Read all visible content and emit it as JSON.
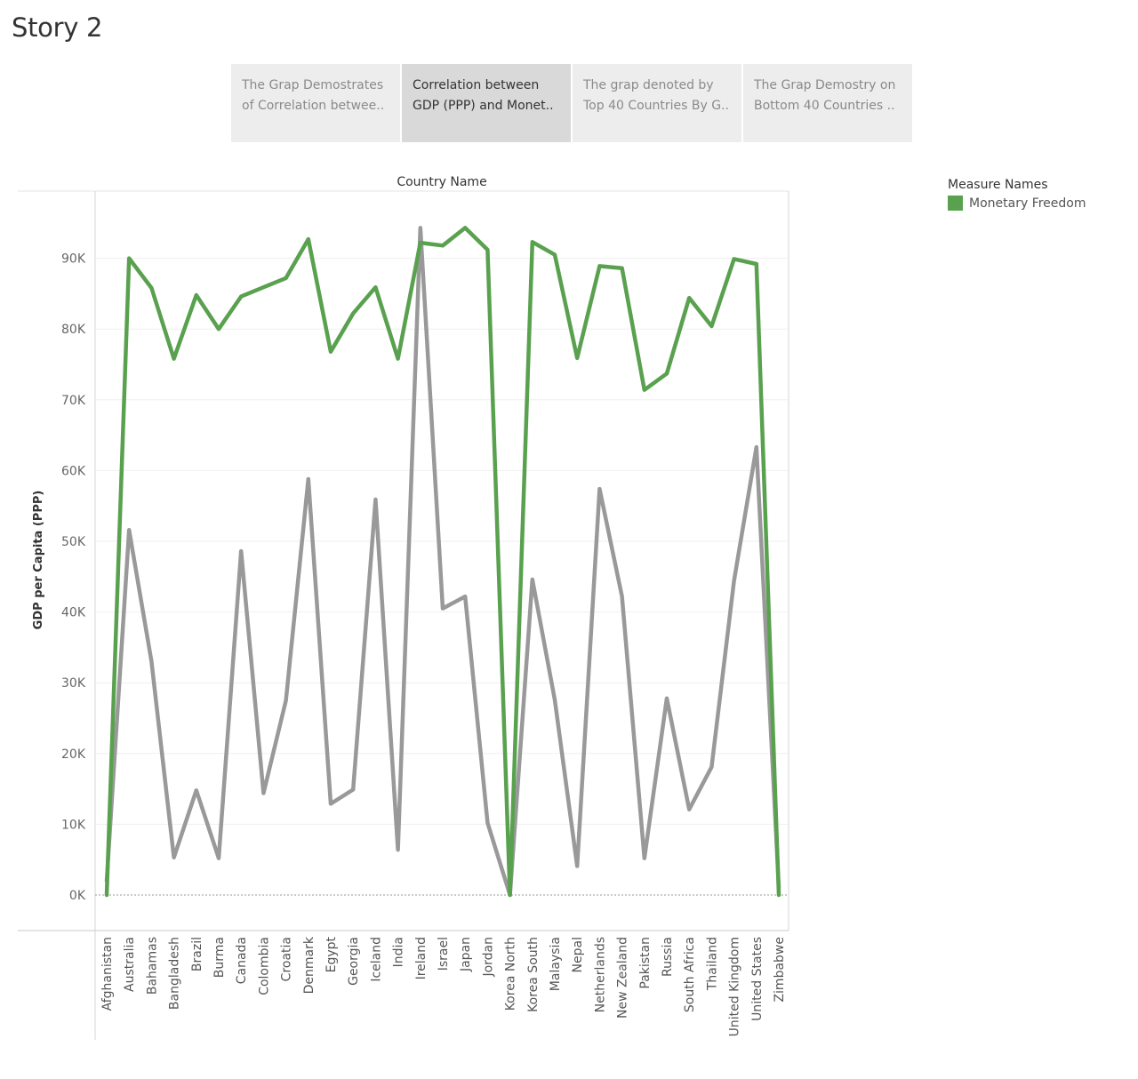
{
  "story": {
    "title": "Story 2"
  },
  "story_points": [
    {
      "line1": "The  Grap Demostrates",
      "line2": "of Correlation betwee..",
      "active": false
    },
    {
      "line1": "Correlation between",
      "line2": "GDP (PPP) and Monet..",
      "active": true
    },
    {
      "line1": "The grap denoted by",
      "line2": "Top 40 Countries By G..",
      "active": false
    },
    {
      "line1": "The Grap Demostry on",
      "line2": "Bottom 40 Countries ..",
      "active": false
    }
  ],
  "legend": {
    "title": "Measure Names",
    "items": [
      {
        "label": "Monetary Freedom",
        "color": "#59a14f"
      }
    ]
  },
  "chart_data": {
    "type": "line",
    "title": "Country Name",
    "xlabel": "Country Name",
    "ylabel": "GDP per Capita (PPP)",
    "ylim": [
      0,
      95000
    ],
    "y_ticks": [
      0,
      10000,
      20000,
      30000,
      40000,
      50000,
      60000,
      70000,
      80000,
      90000
    ],
    "y_tick_labels": [
      "0K",
      "10K",
      "20K",
      "30K",
      "40K",
      "50K",
      "60K",
      "70K",
      "80K",
      "90K"
    ],
    "grid": true,
    "legend_position": "top-right",
    "categories": [
      "Afghanistan",
      "Australia",
      "Bahamas",
      "Bangladesh",
      "Brazil",
      "Burma",
      "Canada",
      "Colombia",
      "Croatia",
      "Denmark",
      "Egypt",
      "Georgia",
      "Iceland",
      "India",
      "Ireland",
      "Israel",
      "Japan",
      "Jordan",
      "Korea North",
      "Korea South",
      "Malaysia",
      "Nepal",
      "Netherlands",
      "New Zealand",
      "Pakistan",
      "Russia",
      "South Africa",
      "Thailand",
      "United Kingdom",
      "United States",
      "Zimbabwe"
    ],
    "series": [
      {
        "name": "Monetary Freedom",
        "color": "#59a14f",
        "values": [
          0,
          90000,
          85800,
          75800,
          84800,
          80000,
          84600,
          85900,
          87200,
          92700,
          76800,
          82200,
          85900,
          75800,
          92200,
          91800,
          94300,
          91200,
          0,
          92300,
          90500,
          75900,
          88900,
          88600,
          71400,
          73700,
          84400,
          80400,
          89900,
          89200,
          0
        ]
      },
      {
        "color": "#999999",
        "values": [
          2000,
          51600,
          33000,
          5300,
          14800,
          5200,
          48600,
          14400,
          27500,
          58800,
          12900,
          14900,
          55900,
          6400,
          94300,
          40500,
          42200,
          10200,
          0,
          44600,
          27600,
          4100,
          57400,
          42200,
          5200,
          27800,
          12100,
          18100,
          44400,
          63300,
          1000
        ]
      }
    ]
  }
}
